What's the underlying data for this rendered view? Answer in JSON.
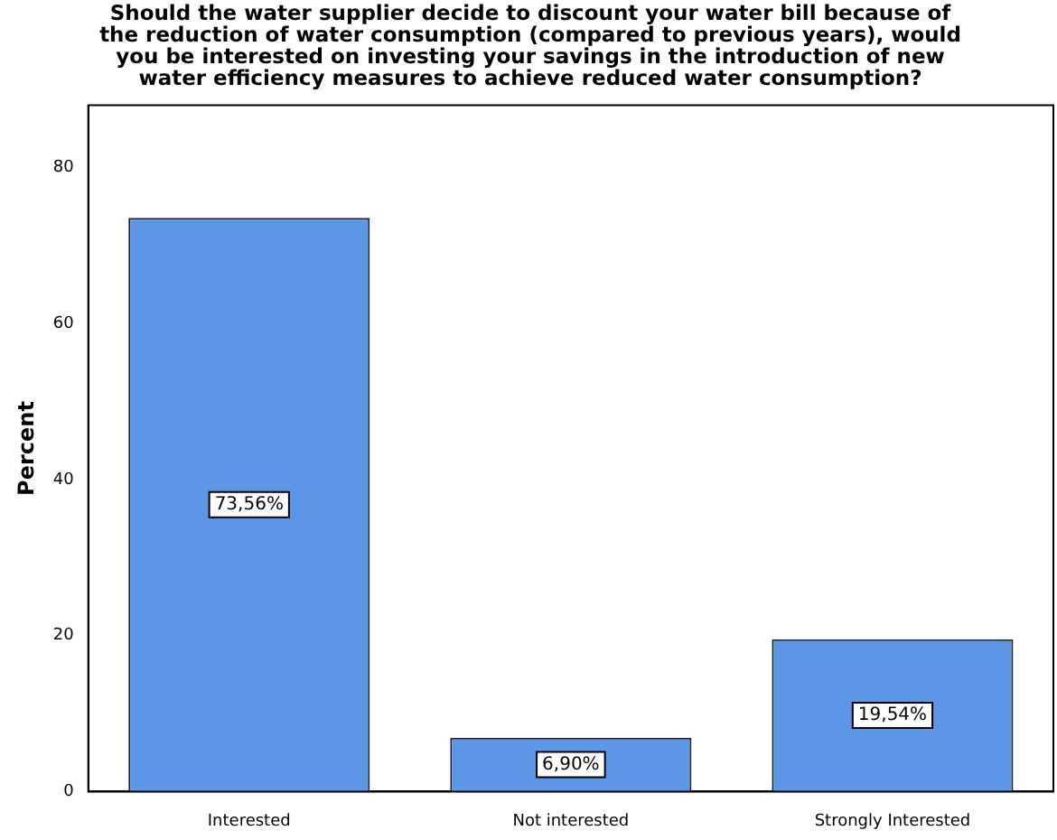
{
  "chart_data": {
    "type": "bar",
    "title": "Should the water supplier decide to discount your water bill because of\nthe reduction of water consumption (compared to previous years), would\nyou be interested on investing your savings in the introduction of new\nwater efficiency measures to achieve reduced water consumption?",
    "ylabel": "Percent",
    "categories": [
      "Interested",
      "Not interested",
      "Strongly Interested"
    ],
    "values": [
      73.56,
      6.9,
      19.54
    ],
    "value_labels": [
      "73,56%",
      "6,90%",
      "19,54%"
    ],
    "color": "#5b97e6",
    "ylim": [
      0,
      88
    ],
    "yticks": [
      0,
      20,
      40,
      60,
      80
    ],
    "grid": false,
    "legend": false
  }
}
